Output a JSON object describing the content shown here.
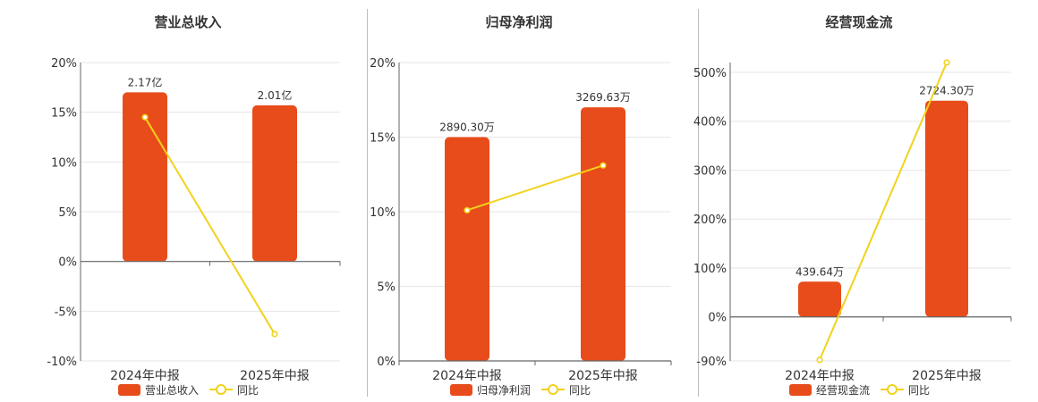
{
  "colors": {
    "bar": "#e84c1a",
    "line": "#f2d21b",
    "line_marker_fill": "#ffffff",
    "grid": "#e6e6e6",
    "axis": "#666666",
    "text": "#333333"
  },
  "chart_data": [
    {
      "type": "bar",
      "title": "营业总收入",
      "categories": [
        "2024年中报",
        "2025年中报"
      ],
      "ylim": [
        -10,
        20
      ],
      "yticks": [
        -10,
        -5,
        0,
        5,
        10,
        15,
        20
      ],
      "ytick_labels": [
        "-10%",
        "-5%",
        "0%",
        "5%",
        "10%",
        "15%",
        "20%"
      ],
      "grid": true,
      "legend": "bottom-center",
      "series": [
        {
          "name": "营业总收入",
          "kind": "bar",
          "values": [
            17.0,
            15.7
          ],
          "labels": [
            "2.17亿",
            "2.01亿"
          ]
        },
        {
          "name": "同比",
          "kind": "line",
          "values": [
            14.5,
            -7.3
          ]
        }
      ]
    },
    {
      "type": "bar",
      "title": "归母净利润",
      "categories": [
        "2024年中报",
        "2025年中报"
      ],
      "ylim": [
        0,
        20
      ],
      "yticks": [
        0,
        5,
        10,
        15,
        20
      ],
      "ytick_labels": [
        "0%",
        "5%",
        "10%",
        "15%",
        "20%"
      ],
      "grid": true,
      "legend": "bottom-center",
      "series": [
        {
          "name": "归母净利润",
          "kind": "bar",
          "values": [
            15.0,
            17.0
          ],
          "labels": [
            "2890.30万",
            "3269.63万"
          ]
        },
        {
          "name": "同比",
          "kind": "line",
          "values": [
            10.1,
            13.1
          ]
        }
      ]
    },
    {
      "type": "bar",
      "title": "经营现金流",
      "categories": [
        "2024年中报",
        "2025年中报"
      ],
      "ylim": [
        -90,
        520
      ],
      "yticks": [
        -90,
        0,
        100,
        200,
        300,
        400,
        500
      ],
      "ytick_labels": [
        "-90%",
        "0%",
        "100%",
        "200%",
        "300%",
        "400%",
        "500%"
      ],
      "grid": true,
      "legend": "bottom-center",
      "series": [
        {
          "name": "经营现金流",
          "kind": "bar",
          "values": [
            72,
            442
          ],
          "labels": [
            "439.64万",
            "2724.30万"
          ]
        },
        {
          "name": "同比",
          "kind": "line",
          "values": [
            -88,
            520
          ]
        }
      ]
    }
  ]
}
